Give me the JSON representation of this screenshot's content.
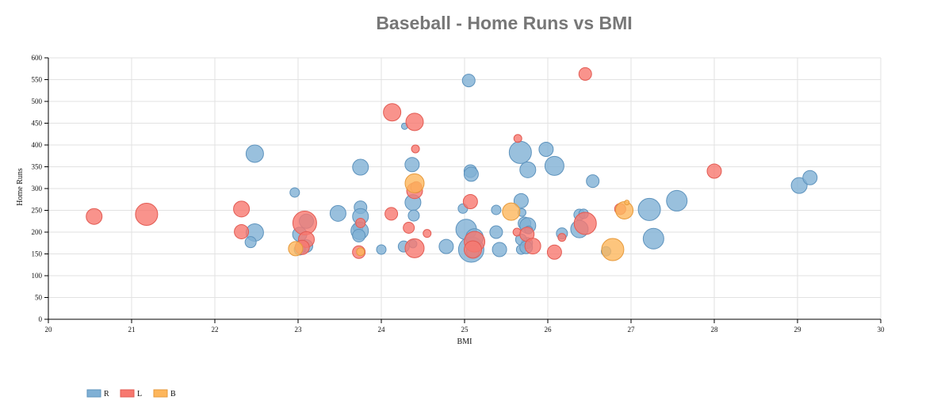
{
  "chart_data": {
    "type": "scatter",
    "title": "Baseball - Home Runs vs BMI",
    "xlabel": "BMI",
    "ylabel": "Home Runs",
    "xlim": [
      20,
      30
    ],
    "ylim": [
      0,
      600
    ],
    "x_ticks": [
      20,
      21,
      22,
      23,
      24,
      25,
      26,
      27,
      28,
      29,
      30
    ],
    "y_ticks": [
      0,
      50,
      100,
      150,
      200,
      250,
      300,
      350,
      400,
      450,
      500,
      550,
      600
    ],
    "grid": true,
    "legend_position": "bottom-left",
    "colors": {
      "R": "#7fb0d5",
      "L": "#f7786f",
      "B": "#fdb65c",
      "R_stroke": "#5e93bd",
      "L_stroke": "#e25b53",
      "B_stroke": "#e69a3c"
    },
    "series": [
      {
        "name": "R",
        "points": [
          [
            25.05,
            548,
            8
          ],
          [
            24.37,
            355,
            9
          ],
          [
            22.48,
            380,
            11
          ],
          [
            23.75,
            349,
            10
          ],
          [
            24.28,
            443,
            4
          ],
          [
            25.07,
            340,
            8
          ],
          [
            25.08,
            333,
            9
          ],
          [
            25.67,
            383,
            14
          ],
          [
            25.76,
            343,
            10
          ],
          [
            25.98,
            390,
            9
          ],
          [
            26.08,
            352,
            12
          ],
          [
            26.54,
            317,
            8
          ],
          [
            22.96,
            291,
            6
          ],
          [
            23.48,
            243,
            10
          ],
          [
            23.75,
            257,
            8
          ],
          [
            23.75,
            236,
            10
          ],
          [
            24.38,
            268,
            10
          ],
          [
            24.39,
            238,
            7
          ],
          [
            24.98,
            254,
            6
          ],
          [
            25.68,
            272,
            9
          ],
          [
            25.69,
            245,
            5
          ],
          [
            25.38,
            251,
            6
          ],
          [
            22.48,
            199,
            11
          ],
          [
            22.43,
            177,
            7
          ],
          [
            23.02,
            195,
            9
          ],
          [
            23.1,
            225,
            9
          ],
          [
            23.1,
            168,
            8
          ],
          [
            23.02,
            160,
            7
          ],
          [
            23.72,
            210,
            6
          ],
          [
            23.74,
            203,
            11
          ],
          [
            23.73,
            192,
            8
          ],
          [
            24.0,
            160,
            6
          ],
          [
            24.27,
            167,
            7
          ],
          [
            24.38,
            173,
            5
          ],
          [
            24.78,
            167,
            9
          ],
          [
            25.02,
            206,
            13
          ],
          [
            25.08,
            160,
            16
          ],
          [
            25.12,
            188,
            11
          ],
          [
            25.1,
            156,
            8
          ],
          [
            25.42,
            160,
            9
          ],
          [
            25.38,
            200,
            8
          ],
          [
            25.72,
            220,
            8
          ],
          [
            25.76,
            215,
            10
          ],
          [
            25.77,
            205,
            5
          ],
          [
            25.75,
            175,
            7
          ],
          [
            25.68,
            183,
            7
          ],
          [
            25.68,
            160,
            6
          ],
          [
            26.17,
            197,
            7
          ],
          [
            26.38,
            240,
            7
          ],
          [
            26.43,
            242,
            6
          ],
          [
            26.38,
            207,
            11
          ],
          [
            26.7,
            156,
            6
          ],
          [
            25.74,
            165,
            8
          ],
          [
            27.22,
            252,
            14
          ],
          [
            27.27,
            185,
            13
          ],
          [
            27.55,
            272,
            13
          ],
          [
            29.02,
            307,
            10
          ],
          [
            29.15,
            325,
            9
          ]
        ]
      },
      {
        "name": "L",
        "points": [
          [
            26.45,
            563,
            8
          ],
          [
            24.13,
            475,
            11
          ],
          [
            24.4,
            453,
            11
          ],
          [
            25.64,
            415,
            5
          ],
          [
            24.41,
            391,
            5
          ],
          [
            24.4,
            295,
            10
          ],
          [
            24.42,
            303,
            7
          ],
          [
            25.07,
            270,
            9
          ],
          [
            20.55,
            236,
            10
          ],
          [
            21.18,
            241,
            14
          ],
          [
            22.32,
            253,
            10
          ],
          [
            22.32,
            201,
            9
          ],
          [
            23.08,
            221,
            15
          ],
          [
            23.1,
            183,
            10
          ],
          [
            23.05,
            165,
            9
          ],
          [
            23.75,
            221,
            6
          ],
          [
            23.73,
            154,
            8
          ],
          [
            24.12,
            242,
            8
          ],
          [
            24.33,
            210,
            7
          ],
          [
            24.4,
            163,
            12
          ],
          [
            24.55,
            197,
            5
          ],
          [
            25.12,
            178,
            13
          ],
          [
            25.1,
            160,
            11
          ],
          [
            25.63,
            200,
            5
          ],
          [
            25.75,
            195,
            9
          ],
          [
            25.82,
            168,
            10
          ],
          [
            26.08,
            154,
            9
          ],
          [
            26.17,
            188,
            5
          ],
          [
            26.45,
            220,
            14
          ],
          [
            26.87,
            253,
            7
          ],
          [
            28.0,
            340,
            9
          ]
        ]
      },
      {
        "name": "B",
        "points": [
          [
            24.4,
            312,
            12
          ],
          [
            22.97,
            162,
            9
          ],
          [
            23.75,
            155,
            5
          ],
          [
            25.56,
            247,
            11
          ],
          [
            26.78,
            160,
            14
          ],
          [
            26.92,
            250,
            11
          ],
          [
            26.95,
            268,
            3
          ]
        ]
      }
    ]
  }
}
